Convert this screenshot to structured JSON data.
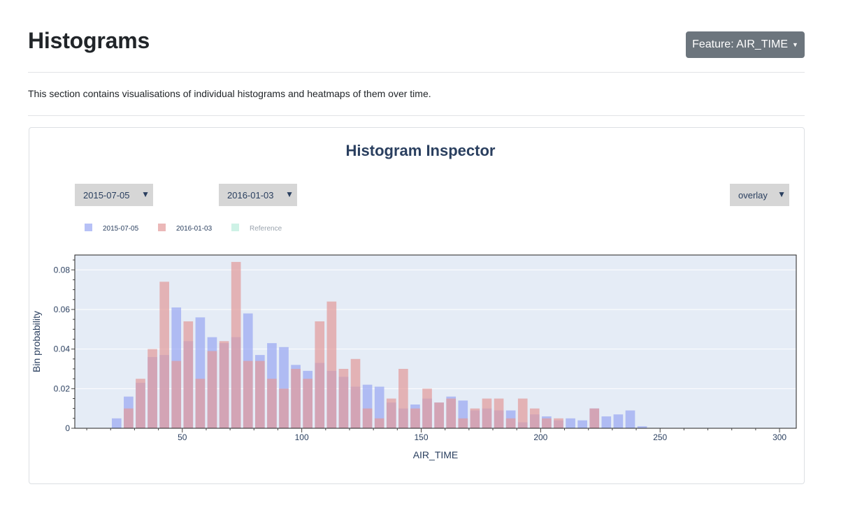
{
  "header": {
    "title": "Histograms",
    "feature_button": "Feature: AIR_TIME"
  },
  "intro": "This section contains visualisations of individual histograms and heatmaps of them over time.",
  "inspector": {
    "title": "Histogram Inspector",
    "date_a": "2015-07-05",
    "date_b": "2016-01-03",
    "mode": "overlay",
    "dropdown_arrow": "▼"
  },
  "colors": {
    "series_a": "#99a7f2",
    "series_b": "#e39a9a",
    "reference": "#a6e8d2",
    "plot_bg": "#e5ecf6"
  },
  "chart_data": {
    "type": "bar",
    "barmode": "overlay",
    "xlabel": "AIR_TIME",
    "ylabel": "Bin probability",
    "xlim": [
      5,
      307
    ],
    "ylim": [
      0,
      0.0875
    ],
    "xticks": [
      50,
      100,
      150,
      200,
      250,
      300
    ],
    "yticks": [
      0,
      0.02,
      0.04,
      0.06,
      0.08
    ],
    "ytick_labels": [
      "0",
      "0.02",
      "0.04",
      "0.06",
      "0.08"
    ],
    "grid": true,
    "legend": [
      "2015-07-05",
      "2016-01-03",
      "Reference"
    ],
    "legend_placement": "top-left",
    "bin_width": 5,
    "x": [
      22.5,
      27.5,
      32.5,
      37.5,
      42.5,
      47.5,
      52.5,
      57.5,
      62.5,
      67.5,
      72.5,
      77.5,
      82.5,
      87.5,
      92.5,
      97.5,
      102.5,
      107.5,
      112.5,
      117.5,
      122.5,
      127.5,
      132.5,
      137.5,
      142.5,
      147.5,
      152.5,
      157.5,
      162.5,
      167.5,
      172.5,
      177.5,
      182.5,
      187.5,
      192.5,
      197.5,
      202.5,
      207.5,
      212.5,
      217.5,
      222.5,
      227.5,
      232.5,
      237.5,
      242.5,
      247.5,
      252.5,
      257.5,
      262.5,
      267.5,
      272.5,
      277.5,
      282.5,
      287.5,
      292.5,
      297.5,
      302.5
    ],
    "series": [
      {
        "name": "2015-07-05",
        "values": [
          0.005,
          0.016,
          0.023,
          0.036,
          0.037,
          0.061,
          0.044,
          0.056,
          0.046,
          0.043,
          0.046,
          0.058,
          0.037,
          0.043,
          0.041,
          0.032,
          0.029,
          0.033,
          0.029,
          0.026,
          0.021,
          0.022,
          0.021,
          0.013,
          0.01,
          0.012,
          0.015,
          0.013,
          0.016,
          0.014,
          0.009,
          0.01,
          0.009,
          0.009,
          0.003,
          0.007,
          0.006,
          0.004,
          0.005,
          0.004,
          0.01,
          0.006,
          0.007,
          0.009,
          0.001,
          0,
          0,
          0,
          0,
          0,
          0,
          0,
          0,
          0,
          0,
          0,
          0
        ]
      },
      {
        "name": "2016-01-03",
        "values": [
          0,
          0.01,
          0.025,
          0.04,
          0.074,
          0.034,
          0.054,
          0.025,
          0.039,
          0.044,
          0.084,
          0.034,
          0.034,
          0.025,
          0.02,
          0.03,
          0.025,
          0.054,
          0.064,
          0.03,
          0.035,
          0.01,
          0.005,
          0.015,
          0.03,
          0.01,
          0.02,
          0.013,
          0.015,
          0.005,
          0.01,
          0.015,
          0.015,
          0.005,
          0.015,
          0.01,
          0.005,
          0.005,
          0,
          0,
          0.01,
          0,
          0,
          0,
          0,
          0,
          0,
          0,
          0,
          0,
          0,
          0,
          0,
          0,
          0,
          0,
          0
        ]
      }
    ]
  }
}
